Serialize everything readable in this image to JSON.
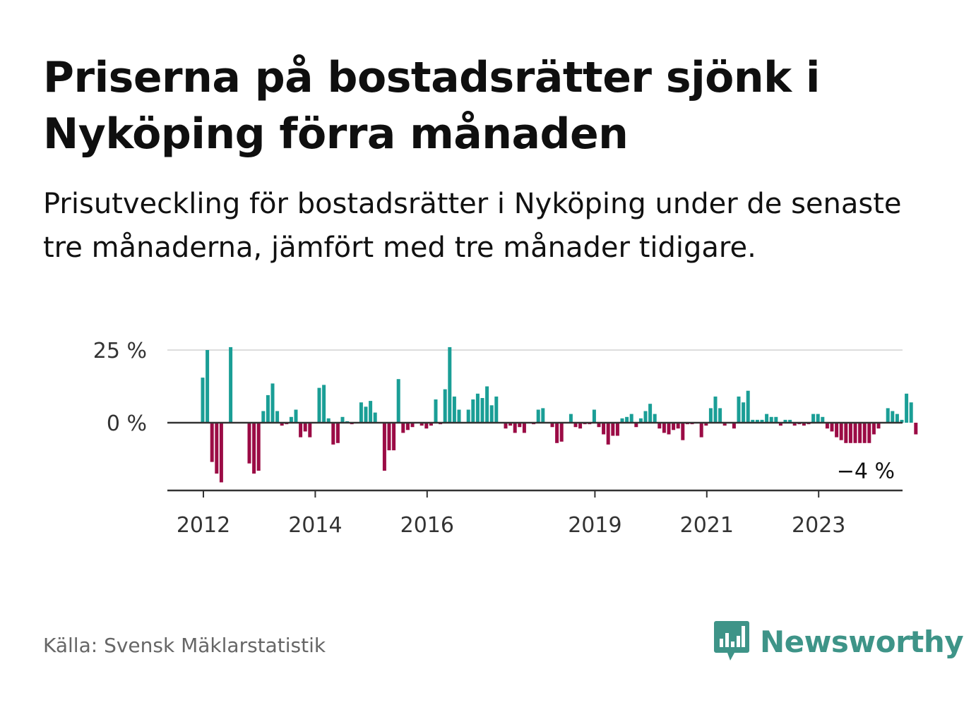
{
  "title": "Priserna på bostadsrätter sjönk i Nyköping förra månaden",
  "subtitle": "Prisutveckling för bostadsrätter i Nyköping under de senaste tre månaderna, jämfört med tre månader tidigare.",
  "source": "Källa: Svensk Mäklarstatistik",
  "brand": "Newsworthy",
  "colors": {
    "positive": "#1a9e96",
    "negative": "#9b0b45",
    "grid": "#dddddd",
    "axis": "#333333",
    "brand": "#3e9488"
  },
  "chart_data": {
    "type": "bar",
    "unit": "%",
    "y_ticks": [
      {
        "value": 0,
        "label": "0 %"
      },
      {
        "value": 25,
        "label": "25 %"
      }
    ],
    "ylim": [
      -24,
      25
    ],
    "x_ticks": [
      {
        "year": 2012,
        "label": "2012"
      },
      {
        "year": 2014,
        "label": "2014"
      },
      {
        "year": 2016,
        "label": "2016"
      },
      {
        "year": 2019,
        "label": "2019"
      },
      {
        "year": 2021,
        "label": "2021"
      },
      {
        "year": 2023,
        "label": "2023"
      }
    ],
    "start": "2012-01",
    "annotation": {
      "text": "−4 %",
      "value": -4
    },
    "values": [
      15.5,
      25,
      -13.5,
      -17.5,
      -20.5,
      0,
      26,
      0,
      0,
      0,
      -14,
      -17.5,
      -16.5,
      4,
      9.5,
      13.5,
      4,
      -1,
      -0.5,
      2,
      4.5,
      -5,
      -3,
      -5,
      0,
      12,
      13,
      1.5,
      -7.5,
      -7,
      2,
      0.5,
      -0.5,
      0,
      7,
      5.5,
      7.5,
      3.5,
      0,
      -16.5,
      -9.5,
      -9.5,
      15,
      -3.5,
      -2.5,
      -1.5,
      0,
      -1,
      -2,
      -1,
      8,
      -0.5,
      11.5,
      26,
      9,
      4.5,
      0,
      4.5,
      8,
      10,
      8.5,
      12.5,
      6,
      9,
      0,
      -2,
      -1,
      -3.5,
      -1.5,
      -3.5,
      0,
      -0.5,
      4.5,
      5,
      0,
      -1.5,
      -7,
      -6.5,
      0,
      3,
      -1.5,
      -2,
      -0.5,
      -0.5,
      4.5,
      -1.5,
      -4,
      -7.5,
      -4.5,
      -4.5,
      1.5,
      2,
      3,
      -1.5,
      1.5,
      4,
      6.5,
      3,
      -2,
      -3.5,
      -4,
      -2.5,
      -2,
      -6,
      -0.5,
      -0.5,
      0,
      -5,
      -1,
      5,
      9,
      5,
      -1,
      0,
      -2,
      9,
      7,
      11,
      1,
      1,
      1,
      3,
      2,
      2,
      -1,
      1,
      1,
      -1,
      -0.5,
      -1,
      -0.5,
      3,
      3,
      2,
      -2,
      -3,
      -5,
      -6,
      -7,
      -7,
      -7,
      -7,
      -7,
      -7,
      -4,
      -2,
      0,
      5,
      4,
      3,
      1,
      10,
      7,
      -4
    ]
  }
}
